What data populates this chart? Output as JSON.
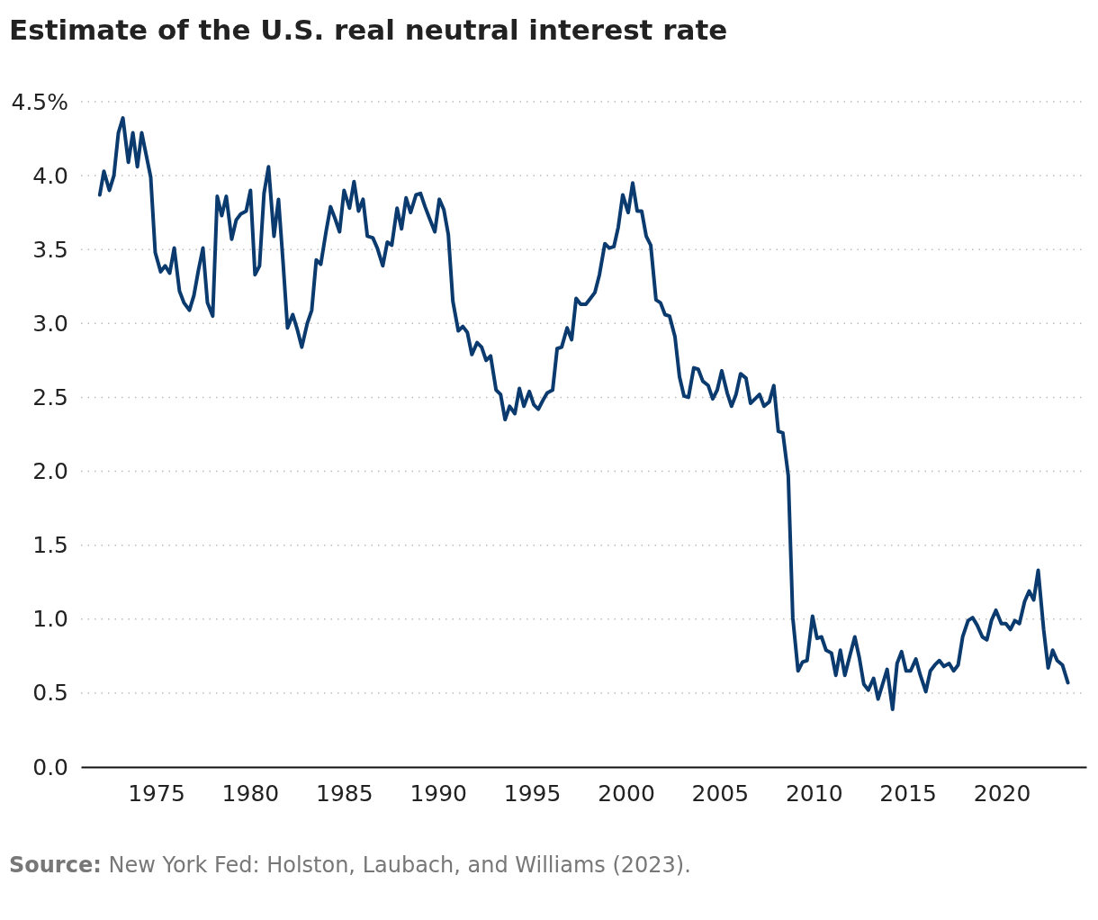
{
  "chart_data": {
    "type": "line",
    "title": "Estimate of the U.S. real neutral interest rate",
    "annotations": [
      "Source: New York Fed: Holston, Laubach, and Williams (2023)."
    ],
    "xlim": [
      1971,
      2024.5
    ],
    "xticks": [
      1975,
      1980,
      1985,
      1990,
      1995,
      2000,
      2005,
      2010,
      2015,
      2020
    ],
    "ylim": [
      0,
      4.5
    ],
    "yticks": [
      {
        "value": 0,
        "label": "0.0"
      },
      {
        "value": 0.5,
        "label": "0.5"
      },
      {
        "value": 1,
        "label": "1.0"
      },
      {
        "value": 1.5,
        "label": "1.5"
      },
      {
        "value": 2,
        "label": "2.0"
      },
      {
        "value": 2.5,
        "label": "2.5"
      },
      {
        "value": 3,
        "label": "3.0"
      },
      {
        "value": 3.5,
        "label": "3.5"
      },
      {
        "value": 4,
        "label": "4.0"
      },
      {
        "value": 4.5,
        "label": "4.5%"
      }
    ],
    "grid": "y",
    "marker": "none",
    "line_style": "solid",
    "series": [
      {
        "color": "#0b3b6e",
        "x": [
          1972.0,
          1972.22,
          1972.51,
          1972.75,
          1972.99,
          1973.23,
          1973.52,
          1973.76,
          1974.0,
          1974.23,
          1974.47,
          1974.71,
          1974.95,
          1975.24,
          1975.48,
          1975.72,
          1975.96,
          1976.24,
          1976.48,
          1976.77,
          1977.01,
          1977.25,
          1977.49,
          1977.73,
          1978.01,
          1978.25,
          1978.49,
          1978.73,
          1979.02,
          1979.26,
          1979.5,
          1979.79,
          1980.02,
          1980.26,
          1980.5,
          1980.74,
          1980.98,
          1981.27,
          1981.51,
          1981.75,
          1981.99,
          1982.27,
          1982.51,
          1982.75,
          1983.04,
          1983.28,
          1983.52,
          1983.76,
          1984.04,
          1984.28,
          1984.52,
          1984.76,
          1985.0,
          1985.29,
          1985.53,
          1985.77,
          1986.01,
          1986.24,
          1986.53,
          1986.77,
          1987.06,
          1987.3,
          1987.54,
          1987.82,
          1988.06,
          1988.3,
          1988.54,
          1988.83,
          1989.07,
          1989.31,
          1989.55,
          1989.83,
          1990.07,
          1990.31,
          1990.55,
          1990.79,
          1991.08,
          1991.32,
          1991.56,
          1991.8,
          1992.08,
          1992.32,
          1992.56,
          1992.8,
          1993.09,
          1993.33,
          1993.57,
          1993.81,
          1994.09,
          1994.33,
          1994.57,
          1994.86,
          1995.1,
          1995.34,
          1995.58,
          1995.81,
          1996.1,
          1996.34,
          1996.58,
          1996.87,
          1997.11,
          1997.35,
          1997.59,
          1997.87,
          1998.11,
          1998.35,
          1998.59,
          1998.88,
          1999.12,
          1999.36,
          1999.59,
          1999.83,
          2000.12,
          2000.36,
          2000.6,
          2000.84,
          2001.08,
          2001.32,
          2001.6,
          2001.84,
          2002.08,
          2002.32,
          2002.61,
          2002.85,
          2003.09,
          2003.33,
          2003.61,
          2003.85,
          2004.09,
          2004.38,
          2004.62,
          2004.86,
          2005.1,
          2005.39,
          2005.62,
          2005.86,
          2006.1,
          2006.39,
          2006.63,
          2006.87,
          2007.11,
          2007.35,
          2007.63,
          2007.87,
          2008.11,
          2008.35,
          2008.64,
          2008.88,
          2009.16,
          2009.4,
          2009.64,
          2009.93,
          2010.17,
          2010.41,
          2010.65,
          2010.94,
          2011.17,
          2011.41,
          2011.65,
          2011.89,
          2012.18,
          2012.42,
          2012.66,
          2012.9,
          2013.18,
          2013.42,
          2013.66,
          2013.9,
          2014.19,
          2014.43,
          2014.67,
          2014.91,
          2015.15,
          2015.43,
          2015.67,
          2015.96,
          2016.2,
          2016.44,
          2016.68,
          2016.92,
          2017.2,
          2017.44,
          2017.68,
          2017.92,
          2018.21,
          2018.45,
          2018.69,
          2018.97,
          2019.21,
          2019.45,
          2019.69,
          2019.98,
          2020.22,
          2020.46,
          2020.7,
          2020.94,
          2021.22,
          2021.46,
          2021.7,
          2021.94,
          2022.23,
          2022.47,
          2022.71,
          2022.95,
          2023.23,
          2023.52
        ],
        "values": [
          3.87,
          4.03,
          3.9,
          4.0,
          4.29,
          4.39,
          4.09,
          4.29,
          4.06,
          4.29,
          4.14,
          3.99,
          3.48,
          3.35,
          3.39,
          3.34,
          3.51,
          3.22,
          3.14,
          3.09,
          3.19,
          3.36,
          3.51,
          3.14,
          3.05,
          3.86,
          3.73,
          3.86,
          3.57,
          3.7,
          3.74,
          3.76,
          3.9,
          3.33,
          3.39,
          3.88,
          4.06,
          3.59,
          3.84,
          3.42,
          2.97,
          3.06,
          2.96,
          2.84,
          3.0,
          3.09,
          3.43,
          3.4,
          3.62,
          3.79,
          3.71,
          3.62,
          3.9,
          3.78,
          3.96,
          3.76,
          3.84,
          3.59,
          3.58,
          3.51,
          3.39,
          3.55,
          3.53,
          3.78,
          3.64,
          3.85,
          3.75,
          3.87,
          3.88,
          3.79,
          3.71,
          3.62,
          3.84,
          3.77,
          3.6,
          3.15,
          2.95,
          2.98,
          2.94,
          2.79,
          2.87,
          2.84,
          2.75,
          2.78,
          2.55,
          2.52,
          2.35,
          2.44,
          2.39,
          2.56,
          2.44,
          2.54,
          2.45,
          2.42,
          2.48,
          2.53,
          2.55,
          2.83,
          2.84,
          2.97,
          2.89,
          3.17,
          3.13,
          3.13,
          3.17,
          3.21,
          3.33,
          3.54,
          3.51,
          3.52,
          3.65,
          3.87,
          3.75,
          3.95,
          3.76,
          3.76,
          3.59,
          3.53,
          3.16,
          3.14,
          3.06,
          3.05,
          2.91,
          2.64,
          2.51,
          2.5,
          2.7,
          2.69,
          2.61,
          2.58,
          2.49,
          2.55,
          2.68,
          2.53,
          2.44,
          2.52,
          2.66,
          2.63,
          2.46,
          2.49,
          2.52,
          2.44,
          2.47,
          2.58,
          2.27,
          2.26,
          1.97,
          1.01,
          0.65,
          0.71,
          0.72,
          1.02,
          0.87,
          0.88,
          0.79,
          0.77,
          0.62,
          0.79,
          0.62,
          0.74,
          0.88,
          0.74,
          0.56,
          0.52,
          0.6,
          0.46,
          0.56,
          0.66,
          0.39,
          0.7,
          0.78,
          0.65,
          0.65,
          0.73,
          0.62,
          0.51,
          0.65,
          0.69,
          0.72,
          0.68,
          0.7,
          0.65,
          0.69,
          0.88,
          0.99,
          1.01,
          0.96,
          0.88,
          0.86,
          0.99,
          1.06,
          0.97,
          0.97,
          0.93,
          0.99,
          0.97,
          1.12,
          1.19,
          1.13,
          1.33,
          0.93,
          0.67,
          0.79,
          0.72,
          0.69,
          0.57
        ]
      }
    ]
  }
}
